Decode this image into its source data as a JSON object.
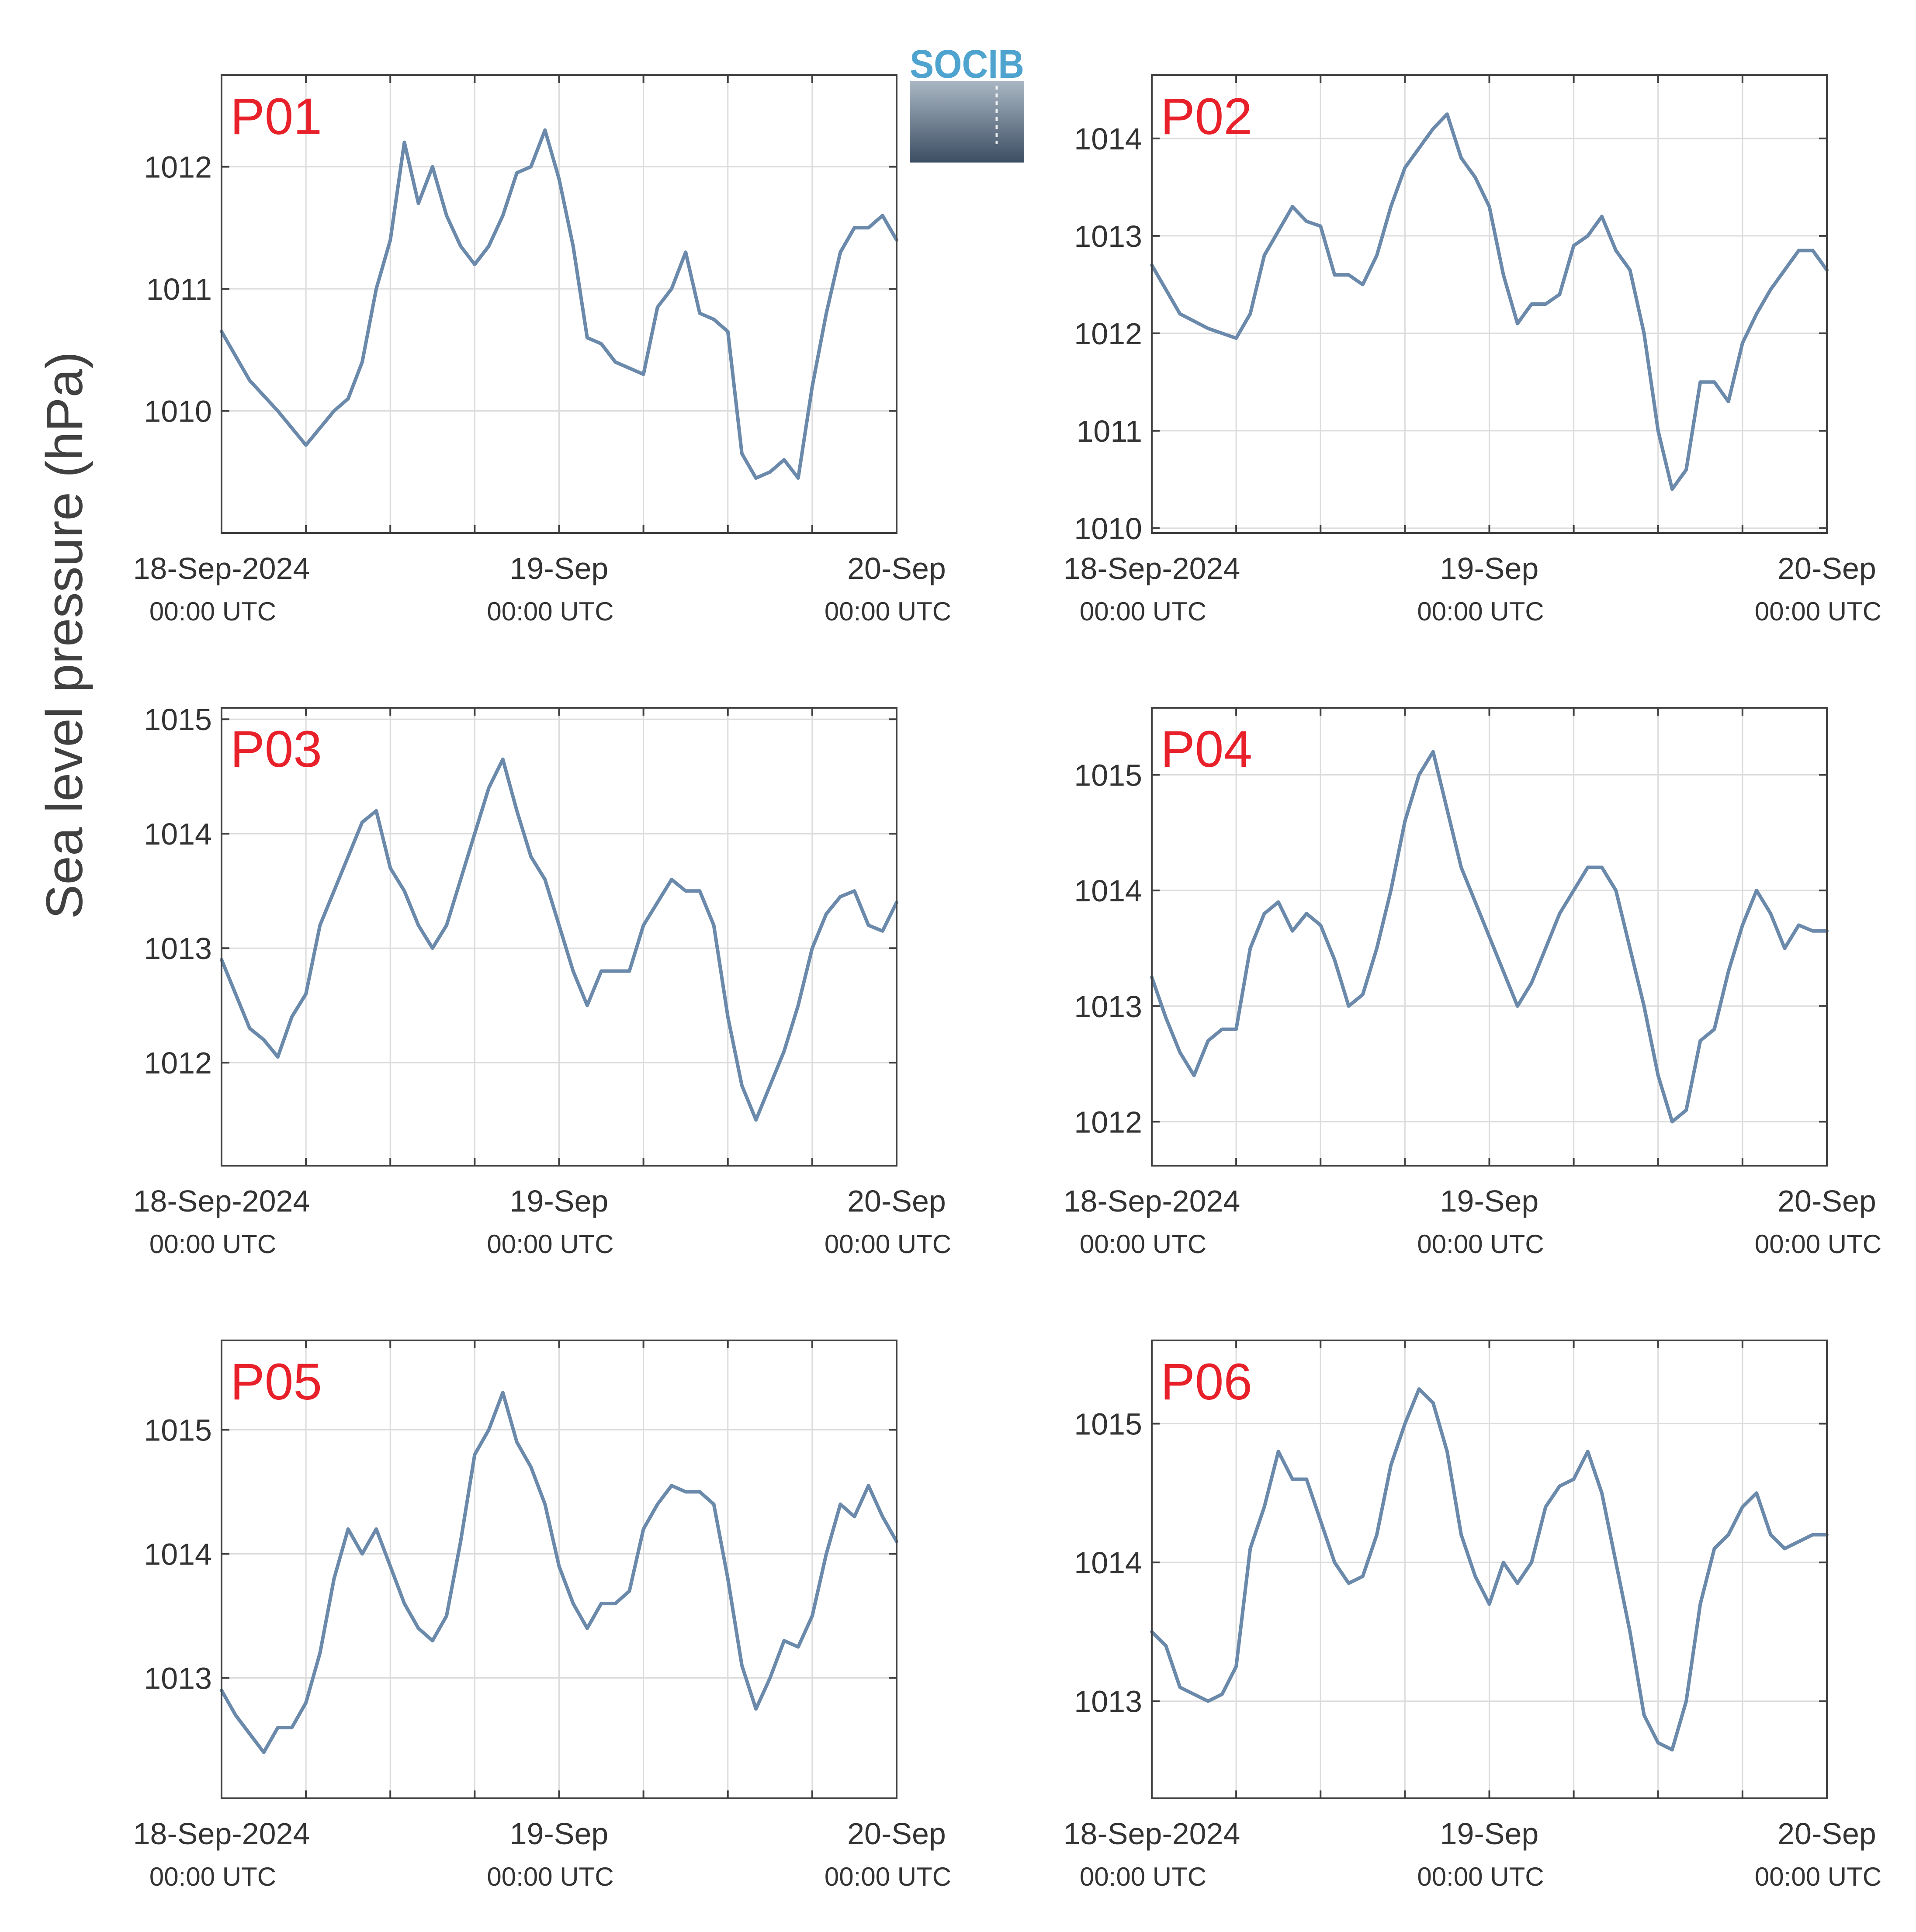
{
  "figure": {
    "ylabel": "Sea level pressure (hPa)",
    "logo_text": "SOCIB"
  },
  "colors": {
    "line": "#6b8aab",
    "panel_label": "#e8202a",
    "axis": "#404040",
    "grid": "#dcdcdc",
    "logo_text": "#4fa3cf",
    "logo_grad_top": "#a9b6c3",
    "logo_grad_bottom": "#3c4e63"
  },
  "chart_data": [
    {
      "type": "line",
      "panel": "P01",
      "x_ticks": [
        {
          "main": "18-Sep-2024",
          "sub": "00:00 UTC"
        },
        {
          "main": "19-Sep",
          "sub": "00:00 UTC"
        },
        {
          "main": "20-Sep",
          "sub": "00:00 UTC"
        }
      ],
      "ylim": [
        1009.0,
        1012.75
      ],
      "yticks": [
        1010,
        1011,
        1012
      ],
      "x_hours": [
        0,
        2,
        4,
        6,
        8,
        9,
        10,
        11,
        12,
        13,
        14,
        15,
        16,
        17,
        18,
        19,
        20,
        21,
        22,
        23,
        24,
        25,
        26,
        27,
        28,
        29,
        30,
        31,
        32,
        33,
        34,
        35,
        36,
        37,
        38,
        39,
        40,
        41,
        42,
        43,
        44,
        45,
        46,
        47,
        48
      ],
      "y": [
        1010.65,
        1010.25,
        1010.0,
        1009.72,
        1010.0,
        1010.1,
        1010.4,
        1011.0,
        1011.4,
        1012.2,
        1011.7,
        1012.0,
        1011.6,
        1011.35,
        1011.2,
        1011.35,
        1011.6,
        1011.95,
        1012.0,
        1012.3,
        1011.9,
        1011.35,
        1010.6,
        1010.55,
        1010.4,
        1010.35,
        1010.3,
        1010.85,
        1011.0,
        1011.3,
        1010.8,
        1010.75,
        1010.65,
        1009.65,
        1009.45,
        1009.5,
        1009.6,
        1009.45,
        1010.2,
        1010.8,
        1011.3,
        1011.5,
        1011.5,
        1011.6,
        1011.4
      ]
    },
    {
      "type": "line",
      "panel": "P02",
      "x_ticks": [
        {
          "main": "18-Sep-2024",
          "sub": "00:00 UTC"
        },
        {
          "main": "19-Sep",
          "sub": "00:00 UTC"
        },
        {
          "main": "20-Sep",
          "sub": "00:00 UTC"
        }
      ],
      "ylim": [
        1009.95,
        1014.65
      ],
      "yticks": [
        1010,
        1011,
        1012,
        1013,
        1014
      ],
      "x_hours": [
        0,
        2,
        4,
        6,
        7,
        8,
        9,
        10,
        11,
        12,
        13,
        14,
        15,
        16,
        17,
        18,
        19,
        20,
        21,
        22,
        23,
        24,
        25,
        26,
        27,
        28,
        29,
        30,
        31,
        32,
        33,
        34,
        35,
        36,
        37,
        38,
        39,
        40,
        41,
        42,
        43,
        44,
        45,
        46,
        47,
        48
      ],
      "y": [
        1012.7,
        1012.2,
        1012.05,
        1011.95,
        1012.2,
        1012.8,
        1013.05,
        1013.3,
        1013.15,
        1013.1,
        1012.6,
        1012.6,
        1012.5,
        1012.8,
        1013.3,
        1013.7,
        1013.9,
        1014.1,
        1014.25,
        1013.8,
        1013.6,
        1013.3,
        1012.6,
        1012.1,
        1012.3,
        1012.3,
        1012.4,
        1012.9,
        1013.0,
        1013.2,
        1012.85,
        1012.65,
        1012.0,
        1011.0,
        1010.4,
        1010.6,
        1011.5,
        1011.5,
        1011.3,
        1011.9,
        1012.2,
        1012.45,
        1012.65,
        1012.85,
        1012.85,
        1012.65
      ]
    },
    {
      "type": "line",
      "panel": "P03",
      "x_ticks": [
        {
          "main": "18-Sep-2024",
          "sub": "00:00 UTC"
        },
        {
          "main": "19-Sep",
          "sub": "00:00 UTC"
        },
        {
          "main": "20-Sep",
          "sub": "00:00 UTC"
        }
      ],
      "ylim": [
        1011.1,
        1015.1
      ],
      "yticks": [
        1012,
        1013,
        1014,
        1015
      ],
      "x_hours": [
        0,
        1,
        2,
        3,
        4,
        5,
        6,
        7,
        8,
        9,
        10,
        11,
        12,
        13,
        14,
        15,
        16,
        17,
        18,
        19,
        20,
        21,
        22,
        23,
        24,
        25,
        26,
        27,
        28,
        29,
        30,
        31,
        32,
        33,
        34,
        35,
        36,
        37,
        38,
        39,
        40,
        41,
        42,
        43,
        44,
        45,
        46,
        47,
        48
      ],
      "y": [
        1012.9,
        1012.6,
        1012.3,
        1012.2,
        1012.05,
        1012.4,
        1012.6,
        1013.2,
        1013.5,
        1013.8,
        1014.1,
        1014.2,
        1013.7,
        1013.5,
        1013.2,
        1013.0,
        1013.2,
        1013.6,
        1014.0,
        1014.4,
        1014.65,
        1014.2,
        1013.8,
        1013.6,
        1013.2,
        1012.8,
        1012.5,
        1012.8,
        1012.8,
        1012.8,
        1013.2,
        1013.4,
        1013.6,
        1013.5,
        1013.5,
        1013.2,
        1012.4,
        1011.8,
        1011.5,
        1011.8,
        1012.1,
        1012.5,
        1013.0,
        1013.3,
        1013.45,
        1013.5,
        1013.2,
        1013.15,
        1013.4
      ]
    },
    {
      "type": "line",
      "panel": "P04",
      "x_ticks": [
        {
          "main": "18-Sep-2024",
          "sub": "00:00 UTC"
        },
        {
          "main": "19-Sep",
          "sub": "00:00 UTC"
        },
        {
          "main": "20-Sep",
          "sub": "00:00 UTC"
        }
      ],
      "ylim": [
        1011.62,
        1015.58
      ],
      "yticks": [
        1012,
        1013,
        1014,
        1015
      ],
      "x_hours": [
        0,
        1,
        2,
        3,
        4,
        5,
        6,
        7,
        8,
        9,
        10,
        11,
        12,
        13,
        14,
        15,
        16,
        17,
        18,
        19,
        20,
        21,
        22,
        23,
        24,
        25,
        26,
        27,
        28,
        29,
        30,
        31,
        32,
        33,
        34,
        35,
        36,
        37,
        38,
        39,
        40,
        41,
        42,
        43,
        44,
        45,
        46,
        47,
        48
      ],
      "y": [
        1013.25,
        1012.9,
        1012.6,
        1012.4,
        1012.7,
        1012.8,
        1012.8,
        1013.5,
        1013.8,
        1013.9,
        1013.65,
        1013.8,
        1013.7,
        1013.4,
        1013.0,
        1013.1,
        1013.5,
        1014.0,
        1014.6,
        1015.0,
        1015.2,
        1014.7,
        1014.2,
        1013.9,
        1013.6,
        1013.3,
        1013.0,
        1013.2,
        1013.5,
        1013.8,
        1014.0,
        1014.2,
        1014.2,
        1014.0,
        1013.5,
        1013.0,
        1012.4,
        1012.0,
        1012.1,
        1012.7,
        1012.8,
        1013.3,
        1013.7,
        1014.0,
        1013.8,
        1013.5,
        1013.7,
        1013.65,
        1013.65
      ]
    },
    {
      "type": "line",
      "panel": "P05",
      "x_ticks": [
        {
          "main": "18-Sep-2024",
          "sub": "00:00 UTC"
        },
        {
          "main": "19-Sep",
          "sub": "00:00 UTC"
        },
        {
          "main": "20-Sep",
          "sub": "00:00 UTC"
        }
      ],
      "ylim": [
        1012.03,
        1015.72
      ],
      "yticks": [
        1013,
        1014,
        1015
      ],
      "x_hours": [
        0,
        1,
        2,
        3,
        4,
        5,
        6,
        7,
        8,
        9,
        10,
        11,
        12,
        13,
        14,
        15,
        16,
        17,
        18,
        19,
        20,
        21,
        22,
        23,
        24,
        25,
        26,
        27,
        28,
        29,
        30,
        31,
        32,
        33,
        34,
        35,
        36,
        37,
        38,
        39,
        40,
        41,
        42,
        43,
        44,
        45,
        46,
        47,
        48
      ],
      "y": [
        1012.9,
        1012.7,
        1012.55,
        1012.4,
        1012.6,
        1012.6,
        1012.8,
        1013.2,
        1013.8,
        1014.2,
        1014.0,
        1014.2,
        1013.9,
        1013.6,
        1013.4,
        1013.3,
        1013.5,
        1014.1,
        1014.8,
        1015.0,
        1015.3,
        1014.9,
        1014.7,
        1014.4,
        1013.9,
        1013.6,
        1013.4,
        1013.6,
        1013.6,
        1013.7,
        1014.2,
        1014.4,
        1014.55,
        1014.5,
        1014.5,
        1014.4,
        1013.8,
        1013.1,
        1012.75,
        1013.0,
        1013.3,
        1013.25,
        1013.5,
        1014.0,
        1014.4,
        1014.3,
        1014.55,
        1014.3,
        1014.1
      ]
    },
    {
      "type": "line",
      "panel": "P06",
      "x_ticks": [
        {
          "main": "18-Sep-2024",
          "sub": "00:00 UTC"
        },
        {
          "main": "19-Sep",
          "sub": "00:00 UTC"
        },
        {
          "main": "20-Sep",
          "sub": "00:00 UTC"
        }
      ],
      "ylim": [
        1012.3,
        1015.6
      ],
      "yticks": [
        1013,
        1014,
        1015
      ],
      "x_hours": [
        0,
        1,
        2,
        3,
        4,
        5,
        6,
        7,
        8,
        9,
        10,
        11,
        12,
        13,
        14,
        15,
        16,
        17,
        18,
        19,
        20,
        21,
        22,
        23,
        24,
        25,
        26,
        27,
        28,
        29,
        30,
        31,
        32,
        33,
        34,
        35,
        36,
        37,
        38,
        39,
        40,
        41,
        42,
        43,
        44,
        45,
        46,
        47,
        48
      ],
      "y": [
        1013.5,
        1013.4,
        1013.1,
        1013.05,
        1013.0,
        1013.05,
        1013.25,
        1014.1,
        1014.4,
        1014.8,
        1014.6,
        1014.6,
        1014.3,
        1014.0,
        1013.85,
        1013.9,
        1014.2,
        1014.7,
        1015.0,
        1015.25,
        1015.15,
        1014.8,
        1014.2,
        1013.9,
        1013.7,
        1014.0,
        1013.85,
        1014.0,
        1014.4,
        1014.55,
        1014.6,
        1014.8,
        1014.5,
        1014.0,
        1013.5,
        1012.9,
        1012.7,
        1012.65,
        1013.0,
        1013.7,
        1014.1,
        1014.2,
        1014.4,
        1014.5,
        1014.2,
        1014.1,
        1014.15,
        1014.2,
        1014.2
      ]
    }
  ]
}
